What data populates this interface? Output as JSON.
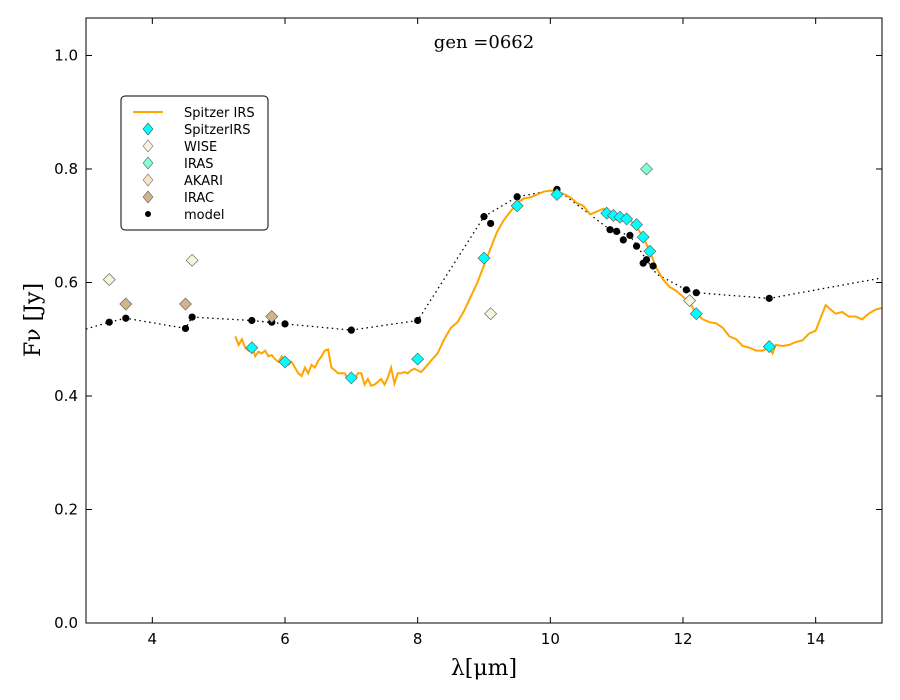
{
  "chart_data": {
    "type": "line",
    "title": "gen =0662",
    "xlabel": "λ[μm]",
    "ylabel": "Fν [Jy]",
    "xlim": [
      3,
      15
    ],
    "ylim": [
      0,
      1.066
    ],
    "xticks": [
      4,
      6,
      8,
      10,
      12,
      14
    ],
    "yticks": [
      0.0,
      0.2,
      0.4,
      0.6,
      0.8,
      1.0
    ],
    "xtick_labels": [
      "4",
      "6",
      "8",
      "10",
      "12",
      "14"
    ],
    "ytick_labels": [
      "0.0",
      "0.2",
      "0.4",
      "0.6",
      "0.8",
      "1.0"
    ],
    "grid": false,
    "legend_position": "upper-left",
    "legend": {
      "spitzer_irs_line": "Spitzer IRS",
      "spitzerirs": "SpitzerIRS",
      "wise": "WISE",
      "iras": "IRAS",
      "akari": "AKARI",
      "irac": "IRAC",
      "model": "model"
    },
    "series": [
      {
        "name": "Spitzer IRS",
        "kind": "line",
        "color": "#ffa500",
        "x": [
          5.25,
          5.3,
          5.35,
          5.4,
          5.45,
          5.5,
          5.55,
          5.6,
          5.65,
          5.7,
          5.75,
          5.8,
          5.85,
          5.9,
          5.95,
          6.0,
          6.05,
          6.1,
          6.15,
          6.2,
          6.25,
          6.3,
          6.35,
          6.4,
          6.45,
          6.5,
          6.55,
          6.6,
          6.65,
          6.7,
          6.75,
          6.8,
          6.85,
          6.9,
          6.95,
          7.0,
          7.05,
          7.1,
          7.15,
          7.2,
          7.25,
          7.3,
          7.35,
          7.4,
          7.45,
          7.5,
          7.55,
          7.6,
          7.65,
          7.7,
          7.75,
          7.8,
          7.85,
          7.9,
          7.95,
          8.0,
          8.05,
          8.1,
          8.2,
          8.3,
          8.4,
          8.5,
          8.6,
          8.7,
          8.8,
          8.9,
          9.0,
          9.1,
          9.2,
          9.3,
          9.4,
          9.5,
          9.6,
          9.7,
          9.8,
          9.9,
          10.0,
          10.1,
          10.2,
          10.3,
          10.4,
          10.5,
          10.6,
          10.7,
          10.8,
          10.9,
          11.0,
          11.1,
          11.2,
          11.3,
          11.4,
          11.5,
          11.6,
          11.7,
          11.8,
          11.9,
          12.0,
          12.1,
          12.2,
          12.3,
          12.4,
          12.5,
          12.6,
          12.7,
          12.8,
          12.9,
          13.0,
          13.1,
          13.2,
          13.3,
          13.35,
          13.4,
          13.5,
          13.6,
          13.7,
          13.8,
          13.9,
          14.0,
          14.05,
          14.1,
          14.15,
          14.2,
          14.3,
          14.4,
          14.5,
          14.6,
          14.7,
          14.8,
          14.9,
          15.0
        ],
        "values": [
          0.505,
          0.49,
          0.5,
          0.485,
          0.48,
          0.49,
          0.47,
          0.478,
          0.475,
          0.48,
          0.47,
          0.472,
          0.465,
          0.46,
          0.47,
          0.462,
          0.455,
          0.46,
          0.45,
          0.44,
          0.435,
          0.45,
          0.44,
          0.455,
          0.45,
          0.462,
          0.47,
          0.48,
          0.482,
          0.45,
          0.445,
          0.44,
          0.44,
          0.44,
          0.43,
          0.425,
          0.43,
          0.44,
          0.44,
          0.42,
          0.43,
          0.418,
          0.42,
          0.425,
          0.43,
          0.42,
          0.432,
          0.45,
          0.422,
          0.44,
          0.44,
          0.442,
          0.44,
          0.445,
          0.448,
          0.445,
          0.442,
          0.448,
          0.462,
          0.475,
          0.5,
          0.52,
          0.53,
          0.55,
          0.575,
          0.6,
          0.63,
          0.66,
          0.69,
          0.71,
          0.725,
          0.74,
          0.748,
          0.75,
          0.755,
          0.76,
          0.762,
          0.758,
          0.756,
          0.75,
          0.74,
          0.735,
          0.72,
          0.725,
          0.73,
          0.722,
          0.71,
          0.715,
          0.71,
          0.698,
          0.68,
          0.655,
          0.625,
          0.605,
          0.592,
          0.585,
          0.575,
          0.565,
          0.545,
          0.535,
          0.53,
          0.528,
          0.52,
          0.505,
          0.5,
          0.488,
          0.485,
          0.48,
          0.48,
          0.485,
          0.475,
          0.49,
          0.488,
          0.49,
          0.495,
          0.498,
          0.51,
          0.515,
          0.53,
          0.545,
          0.56,
          0.555,
          0.545,
          0.548,
          0.54,
          0.54,
          0.535,
          0.545,
          0.552,
          0.555
        ]
      },
      {
        "name": "SpitzerIRS",
        "kind": "diamond",
        "color": "#00ffff",
        "x": [
          5.5,
          6.0,
          7.0,
          8.0,
          9.0,
          9.5,
          10.1,
          10.85,
          10.95,
          11.05,
          11.15,
          11.3,
          11.4,
          11.5,
          12.2,
          13.3
        ],
        "values": [
          0.485,
          0.46,
          0.432,
          0.465,
          0.643,
          0.735,
          0.755,
          0.722,
          0.718,
          0.715,
          0.712,
          0.702,
          0.68,
          0.655,
          0.545,
          0.487
        ]
      },
      {
        "name": "WISE",
        "kind": "diamond",
        "color": "#f5f5dc",
        "x": [
          3.35,
          4.6,
          9.1,
          12.1
        ],
        "values": [
          0.605,
          0.639,
          0.545,
          0.568
        ]
      },
      {
        "name": "IRAS",
        "kind": "diamond",
        "color": "#7fffd4",
        "x": [
          11.45
        ],
        "values": [
          0.8
        ]
      },
      {
        "name": "AKARI",
        "kind": "diamond",
        "color": "#ffe4c4",
        "x": [],
        "values": []
      },
      {
        "name": "IRAC",
        "kind": "diamond",
        "color": "#d2b48c",
        "x": [
          3.6,
          4.5,
          5.8
        ],
        "values": [
          0.562,
          0.562,
          0.54
        ]
      },
      {
        "name": "model",
        "kind": "dot",
        "color": "#000000",
        "x": [
          3.35,
          3.6,
          4.5,
          4.6,
          5.5,
          5.8,
          6.0,
          7.0,
          8.0,
          9.0,
          9.1,
          9.5,
          10.1,
          10.9,
          11.0,
          11.1,
          11.2,
          11.3,
          11.4,
          11.45,
          11.55,
          12.05,
          12.2,
          13.3
        ],
        "values": [
          0.53,
          0.537,
          0.519,
          0.539,
          0.533,
          0.53,
          0.527,
          0.516,
          0.533,
          0.716,
          0.704,
          0.751,
          0.764,
          0.693,
          0.69,
          0.675,
          0.683,
          0.664,
          0.634,
          0.64,
          0.629,
          0.587,
          0.582,
          0.572
        ]
      },
      {
        "name": "model-curve",
        "kind": "dotted-line",
        "color": "#000000",
        "x": [
          3.0,
          3.35,
          3.6,
          4.5,
          4.6,
          5.5,
          6.0,
          7.0,
          8.0,
          9.0,
          9.5,
          10.1,
          10.9,
          11.2,
          11.45,
          11.6,
          12.05,
          12.2,
          13.3,
          15.0
        ],
        "values": [
          0.518,
          0.53,
          0.537,
          0.519,
          0.539,
          0.533,
          0.527,
          0.516,
          0.533,
          0.716,
          0.751,
          0.764,
          0.693,
          0.683,
          0.64,
          0.615,
          0.587,
          0.582,
          0.572,
          0.608
        ]
      }
    ]
  }
}
